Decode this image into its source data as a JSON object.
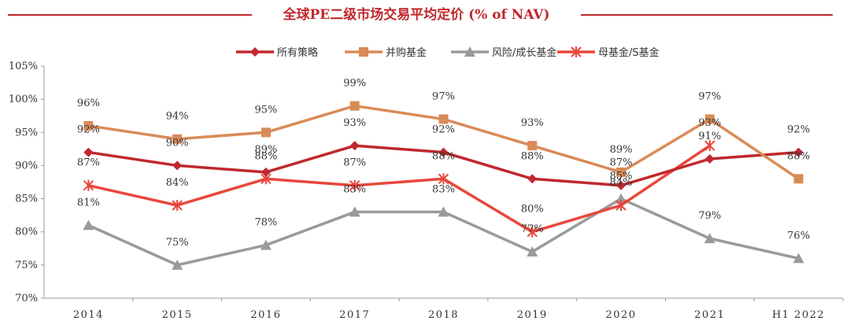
{
  "title": "全球PE二级市场交易平均定价 (% of NAV)",
  "chart_data": {
    "type": "line",
    "title": "全球PE二级市场交易平均定价 (% of NAV)",
    "categories": [
      "2014",
      "2015",
      "2016",
      "2017",
      "2018",
      "2019",
      "2020",
      "2021",
      "H1 2022"
    ],
    "ylim": [
      70,
      105
    ],
    "y_ticks": [
      "70%",
      "75%",
      "80%",
      "85%",
      "90%",
      "95%",
      "100%",
      "105%"
    ],
    "y_tick_values": [
      70,
      75,
      80,
      85,
      90,
      95,
      100,
      105
    ],
    "legend_position": "top-center",
    "grid": false,
    "series": [
      {
        "name": "所有策略",
        "color": "#c0282d",
        "marker": "diamond",
        "values": [
          92,
          90,
          89,
          93,
          92,
          88,
          87,
          91,
          92
        ],
        "labels": [
          "92%",
          "90%",
          "89%",
          "93%",
          "92%",
          "88%",
          "87%",
          "91%",
          "92%"
        ]
      },
      {
        "name": "并购基金",
        "color": "#d98b57",
        "marker": "square",
        "values": [
          96,
          94,
          95,
          99,
          97,
          93,
          89,
          97,
          88
        ],
        "labels": [
          "96%",
          "94%",
          "95%",
          "99%",
          "97%",
          "93%",
          "89%",
          "97%",
          "88%"
        ]
      },
      {
        "name": "风险/成长基金",
        "color": "#9a9a9a",
        "marker": "triangle",
        "values": [
          81,
          75,
          78,
          83,
          83,
          77,
          85,
          79,
          76
        ],
        "labels": [
          "81%",
          "75%",
          "78%",
          "83%",
          "83%",
          "77%",
          "85%",
          "79%",
          "76%"
        ]
      },
      {
        "name": "母基金/S基金",
        "color": "#e8473c",
        "marker": "star",
        "values": [
          87,
          84,
          88,
          87,
          88,
          80,
          84,
          93,
          null
        ],
        "labels": [
          "87%",
          "84%",
          "88%",
          "87%",
          "88%",
          "80%",
          "84%",
          "93%",
          null
        ]
      }
    ]
  }
}
